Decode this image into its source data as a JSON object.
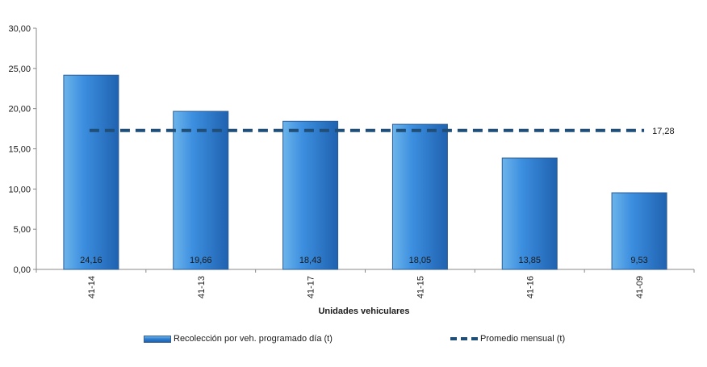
{
  "chart_data": {
    "type": "bar",
    "categories": [
      "41-14",
      "41-13",
      "41-17",
      "41-15",
      "41-16",
      "41-09"
    ],
    "series": [
      {
        "name": "Recolección por veh. programado día (t)",
        "type": "bar",
        "values": [
          24.16,
          19.66,
          18.43,
          18.05,
          13.85,
          9.53
        ],
        "data_labels": [
          "24,16",
          "19,66",
          "18,43",
          "18,05",
          "13,85",
          "9,53"
        ]
      },
      {
        "name": "Promedio mensual (t)",
        "type": "line-dashed",
        "value": 17.28,
        "data_label": "17,28"
      }
    ],
    "xlabel": "Unidades vehiculares",
    "ylabel": "",
    "ylim": [
      0,
      30
    ],
    "yticks": [
      "0,00",
      "5,00",
      "10,00",
      "15,00",
      "20,00",
      "25,00",
      "30,00"
    ],
    "ytick_values": [
      0,
      5,
      10,
      15,
      20,
      25,
      30
    ],
    "grid": false,
    "legend_position": "bottom",
    "colors": {
      "bar": "#2f7fd0",
      "bar_light": "#6cb4ea",
      "bar_dark": "#1f62b0",
      "line": "#1f4e79"
    }
  }
}
